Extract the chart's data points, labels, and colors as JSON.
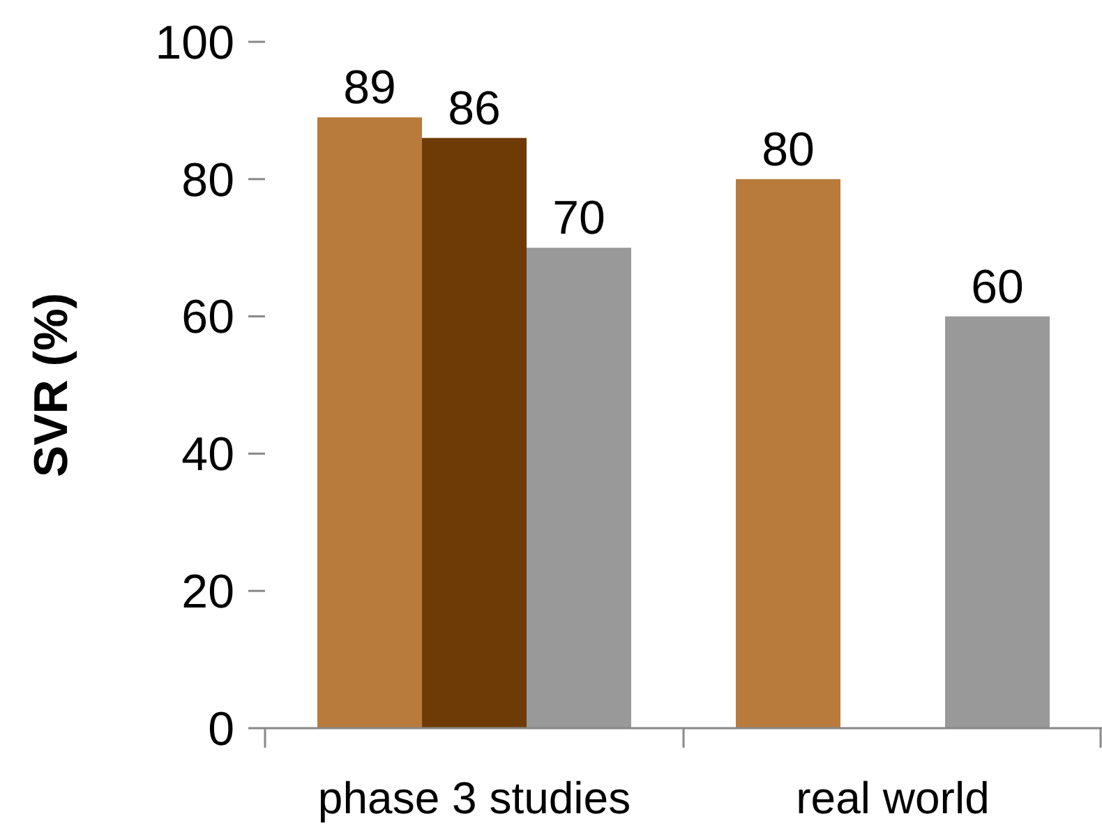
{
  "chart_data": {
    "type": "bar",
    "ylabel": "SVR (%)",
    "categories": [
      "phase 3 studies",
      "real world"
    ],
    "series": [
      {
        "color": "#b87b3c",
        "values": [
          89,
          80
        ]
      },
      {
        "color": "#6e3b06",
        "values": [
          86,
          null
        ]
      },
      {
        "color": "#999999",
        "values": [
          70,
          60
        ]
      }
    ],
    "ylim": [
      0,
      100
    ],
    "yticks": [
      0,
      20,
      40,
      60,
      80,
      100
    ],
    "data_labels": true,
    "grid": false
  }
}
